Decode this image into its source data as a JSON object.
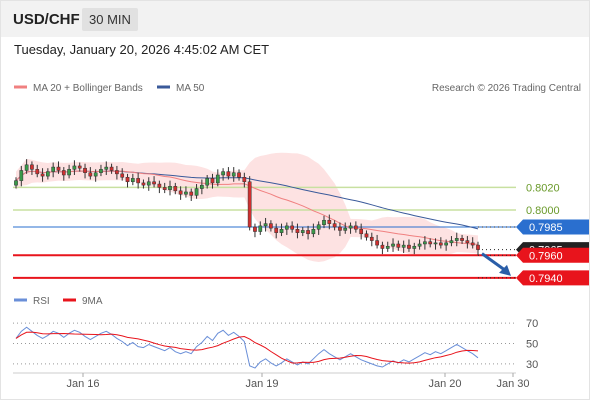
{
  "header": {
    "symbol": "USD/CHF",
    "interval": "30 MIN",
    "datetime": "Tuesday, January 20, 2026 4:45:02 AM CET"
  },
  "legend": {
    "ma20_label": "MA 20 + Bollinger Bands",
    "ma50_label": "MA 50",
    "copyright": "Research © 2026 Trading Central",
    "rsi_label": "RSI",
    "rsi_ma_label": "9MA"
  },
  "colors": {
    "ma20": "#f08080",
    "ma50": "#3a5a9a",
    "bands_fill": "#fde2e2",
    "resistance": "#c8e0a0",
    "pivot": "#2a6fcf",
    "support": "#e8141c",
    "current_price": "#222222",
    "arrow": "#2a5ea8",
    "rsi": "#6a8fd8",
    "rsi_ma": "#e8141c"
  },
  "chart_data": [
    {
      "type": "candlestick",
      "title": "",
      "x_ticks": [
        "Jan 16",
        "Jan 19",
        "Jan 20",
        "Jan 30"
      ],
      "ylim": [
        0.7924,
        0.8092
      ],
      "levels": [
        {
          "label": "0.8020",
          "value": 0.802,
          "kind": "resistance"
        },
        {
          "label": "0.8000",
          "value": 0.8,
          "kind": "resistance"
        },
        {
          "label": "0.7985",
          "value": 0.7985,
          "kind": "pivot"
        },
        {
          "label": "0.7965",
          "value": 0.7965,
          "kind": "current"
        },
        {
          "label": "0.7960",
          "value": 0.796,
          "kind": "support"
        },
        {
          "label": "0.7940",
          "value": 0.794,
          "kind": "support"
        }
      ],
      "close": [
        0.8026,
        0.8035,
        0.804,
        0.8036,
        0.8032,
        0.803,
        0.8034,
        0.8038,
        0.8035,
        0.8031,
        0.8036,
        0.8039,
        0.8037,
        0.8033,
        0.803,
        0.8033,
        0.8036,
        0.8038,
        0.8035,
        0.8032,
        0.8029,
        0.8025,
        0.8028,
        0.8024,
        0.8022,
        0.8025,
        0.8023,
        0.802,
        0.8018,
        0.8021,
        0.8017,
        0.8014,
        0.8016,
        0.8013,
        0.8019,
        0.8022,
        0.8028,
        0.8024,
        0.8031,
        0.8034,
        0.803,
        0.8033,
        0.8029,
        0.8025,
        0.7985,
        0.7981,
        0.7986,
        0.7988,
        0.7984,
        0.798,
        0.7983,
        0.7986,
        0.7983,
        0.798,
        0.7982,
        0.7979,
        0.7983,
        0.7987,
        0.7991,
        0.7988,
        0.7985,
        0.7982,
        0.7984,
        0.7986,
        0.7983,
        0.7979,
        0.7976,
        0.7973,
        0.7969,
        0.7966,
        0.7968,
        0.797,
        0.7967,
        0.7969,
        0.7966,
        0.7968,
        0.797,
        0.7972,
        0.797,
        0.7971,
        0.7969,
        0.7971,
        0.7973,
        0.7975,
        0.7973,
        0.7971,
        0.7969,
        0.7965
      ],
      "series": [
        {
          "name": "MA 20 + Bollinger Bands"
        },
        {
          "name": "MA 50"
        }
      ]
    },
    {
      "type": "line",
      "title": "",
      "ylim": [
        25,
        78
      ],
      "y_ticks": [
        70,
        50,
        30
      ],
      "rsi": [
        55,
        62,
        66,
        62,
        58,
        55,
        58,
        62,
        60,
        56,
        60,
        63,
        61,
        57,
        54,
        57,
        60,
        62,
        59,
        55,
        52,
        48,
        51,
        47,
        46,
        49,
        47,
        45,
        43,
        46,
        42,
        40,
        42,
        40,
        47,
        51,
        57,
        53,
        60,
        63,
        58,
        61,
        57,
        52,
        28,
        26,
        32,
        35,
        31,
        28,
        31,
        35,
        32,
        29,
        32,
        30,
        35,
        40,
        44,
        40,
        37,
        34,
        37,
        40,
        37,
        34,
        32,
        30,
        28,
        27,
        30,
        33,
        31,
        34,
        32,
        35,
        38,
        41,
        39,
        42,
        40,
        43,
        46,
        49,
        46,
        43,
        40,
        36
      ],
      "series": [
        {
          "name": "RSI"
        },
        {
          "name": "9MA"
        }
      ]
    }
  ]
}
